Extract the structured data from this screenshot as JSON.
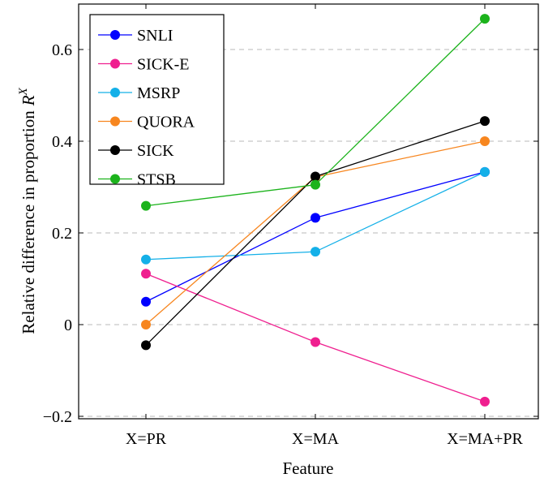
{
  "chart_data": {
    "type": "line",
    "title": "",
    "xlabel": "Feature",
    "ylabel": "Relative difference in proportion",
    "ylabel_symbol": "R",
    "ylabel_superscript": "X",
    "categories": [
      "X=PR",
      "X=MA",
      "X=MA+PR"
    ],
    "ylim": [
      -0.2,
      0.7
    ],
    "yticks": [
      -0.2,
      0,
      0.2,
      0.4,
      0.6
    ],
    "ytick_labels": [
      "−0.2",
      "0",
      "0.2",
      "0.4",
      "0.6"
    ],
    "grid": "horizontal dashed",
    "legend_position": "top-left",
    "series": [
      {
        "name": "SNLI",
        "color": "#0000ff",
        "values": [
          0.05,
          0.233,
          0.333
        ]
      },
      {
        "name": "SICK-E",
        "color": "#ef1f8f",
        "values": [
          0.111,
          -0.038,
          -0.168
        ]
      },
      {
        "name": "MSRP",
        "color": "#14b0e8",
        "values": [
          0.142,
          0.159,
          0.333
        ]
      },
      {
        "name": "QUORA",
        "color": "#f7861f",
        "values": [
          0.0,
          0.322,
          0.4
        ]
      },
      {
        "name": "SICK",
        "color": "#000000",
        "values": [
          -0.045,
          0.323,
          0.444
        ]
      },
      {
        "name": "STSB",
        "color": "#1cb31c",
        "values": [
          0.259,
          0.305,
          0.667
        ]
      }
    ]
  }
}
